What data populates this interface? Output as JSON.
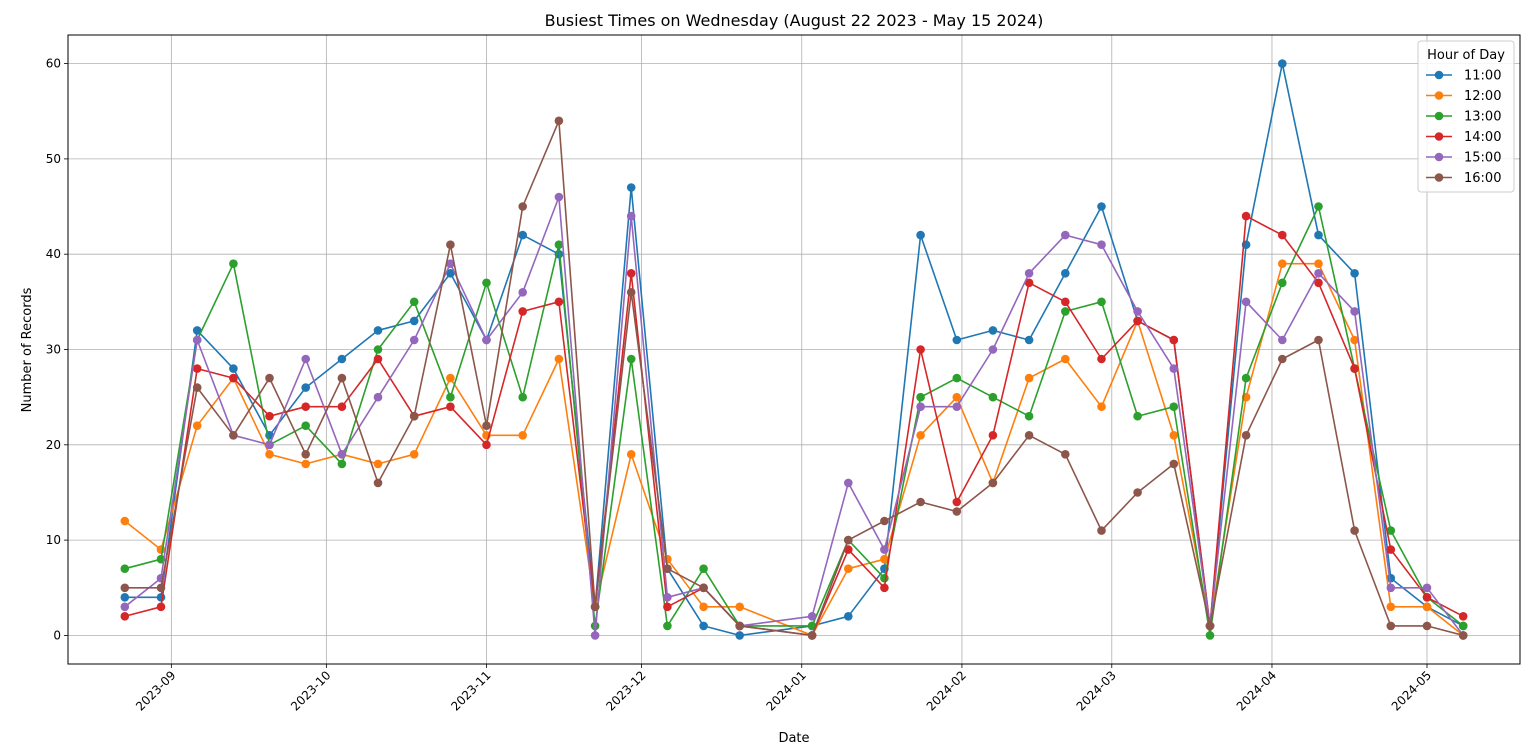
{
  "chart_data": {
    "type": "line",
    "title": "Busiest Times on Wednesday (August 22 2023 - May 15 2024)",
    "xlabel": "Date",
    "ylabel": "Number of Records",
    "xlim": [
      "2023-08-12",
      "2024-05-19"
    ],
    "ylim": [
      -3,
      63
    ],
    "yticks": [
      0,
      10,
      20,
      30,
      40,
      50,
      60
    ],
    "xticks": [
      "2023-09",
      "2023-10",
      "2023-11",
      "2023-12",
      "2024-01",
      "2024-02",
      "2024-03",
      "2024-04",
      "2024-05"
    ],
    "grid": true,
    "legend": {
      "title": "Hour of Day",
      "position": "top-right"
    },
    "x": [
      "2023-08-23",
      "2023-08-30",
      "2023-09-06",
      "2023-09-13",
      "2023-09-20",
      "2023-09-27",
      "2023-10-04",
      "2023-10-11",
      "2023-10-18",
      "2023-10-25",
      "2023-11-01",
      "2023-11-08",
      "2023-11-15",
      "2023-11-22",
      "2023-11-29",
      "2023-12-06",
      "2023-12-13",
      "2023-12-20",
      "2024-01-03",
      "2024-01-10",
      "2024-01-17",
      "2024-01-24",
      "2024-01-31",
      "2024-02-07",
      "2024-02-14",
      "2024-02-21",
      "2024-02-28",
      "2024-03-06",
      "2024-03-13",
      "2024-03-20",
      "2024-03-27",
      "2024-04-03",
      "2024-04-10",
      "2024-04-17",
      "2024-04-24",
      "2024-05-01",
      "2024-05-08"
    ],
    "series": [
      {
        "name": "11:00",
        "color": "#1f77b4",
        "values": [
          4,
          4,
          32,
          28,
          21,
          26,
          29,
          32,
          33,
          38,
          31,
          42,
          40,
          3,
          47,
          7,
          1,
          0,
          1,
          2,
          7,
          42,
          31,
          32,
          31,
          38,
          45,
          33,
          31,
          1,
          41,
          60,
          42,
          38,
          6,
          3,
          1
        ]
      },
      {
        "name": "12:00",
        "color": "#ff7f0e",
        "values": [
          12,
          9,
          22,
          27,
          19,
          18,
          19,
          18,
          19,
          27,
          21,
          21,
          29,
          3,
          19,
          8,
          3,
          3,
          0,
          7,
          8,
          21,
          25,
          16,
          27,
          29,
          24,
          33,
          21,
          1,
          25,
          39,
          39,
          31,
          3,
          3,
          0
        ]
      },
      {
        "name": "13:00",
        "color": "#2ca02c",
        "values": [
          7,
          8,
          31,
          39,
          20,
          22,
          18,
          30,
          35,
          25,
          37,
          25,
          41,
          1,
          29,
          1,
          7,
          1,
          1,
          10,
          6,
          25,
          27,
          25,
          23,
          34,
          35,
          23,
          24,
          0,
          27,
          37,
          45,
          28,
          11,
          4,
          1
        ]
      },
      {
        "name": "14:00",
        "color": "#d62728",
        "values": [
          2,
          3,
          28,
          27,
          23,
          24,
          24,
          29,
          23,
          24,
          20,
          34,
          35,
          3,
          38,
          3,
          5,
          1,
          0,
          9,
          5,
          30,
          14,
          21,
          37,
          35,
          29,
          33,
          31,
          1,
          44,
          42,
          37,
          28,
          9,
          4,
          2
        ]
      },
      {
        "name": "15:00",
        "color": "#9467bd",
        "values": [
          3,
          6,
          31,
          21,
          20,
          29,
          19,
          25,
          31,
          39,
          31,
          36,
          46,
          0,
          44,
          4,
          5,
          1,
          2,
          16,
          9,
          24,
          24,
          30,
          38,
          42,
          41,
          34,
          28,
          1,
          35,
          31,
          38,
          34,
          5,
          5,
          0
        ]
      },
      {
        "name": "16:00",
        "color": "#8c564b",
        "values": [
          5,
          5,
          26,
          21,
          27,
          19,
          27,
          16,
          23,
          41,
          22,
          45,
          54,
          3,
          36,
          7,
          5,
          1,
          0,
          10,
          12,
          14,
          13,
          16,
          21,
          19,
          11,
          15,
          18,
          1,
          21,
          29,
          31,
          11,
          1,
          1,
          0
        ]
      }
    ]
  }
}
